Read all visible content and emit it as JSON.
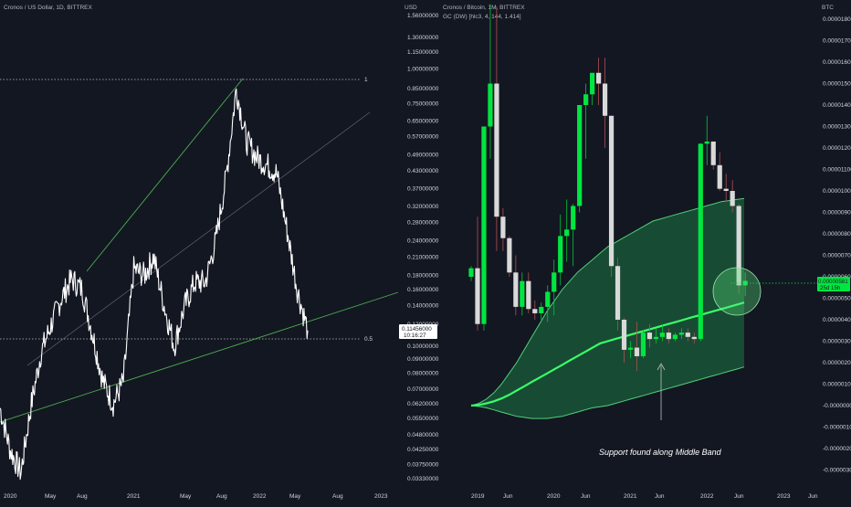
{
  "colors": {
    "background": "#131722",
    "price_line": "#ffffff",
    "trendline": "#4caf50",
    "candle_up": "#00e640",
    "candle_down": "#e0e0e0",
    "band_fill": "#1b5e3a",
    "middle_band": "#39ff6a",
    "highlight": "#58e078"
  },
  "chart_data": [
    {
      "type": "line",
      "title": "Cronos / US Dollar, 1D, BITTREX",
      "currency": "USD",
      "y_scale": "log",
      "y_ticks": [
        "1.56000000",
        "1.30000000",
        "1.15000000",
        "1.00000000",
        "0.85000000",
        "0.75000000",
        "0.65000000",
        "0.57000000",
        "0.49000000",
        "0.43000000",
        "0.37000000",
        "0.32000000",
        "0.28000000",
        "0.24000000",
        "0.21000000",
        "0.18000000",
        "0.16000000",
        "0.14000000",
        "0.12000000",
        "0.10000000",
        "0.09000000",
        "0.08000000",
        "0.07000000",
        "0.06200000",
        "0.05500000",
        "0.04800000",
        "0.04250000",
        "0.03750000",
        "0.03330000"
      ],
      "x_ticks": [
        "2020",
        "May",
        "Aug",
        "2021",
        "May",
        "Aug",
        "2022",
        "May",
        "Aug",
        "2023"
      ],
      "last_price": "0.11456000",
      "countdown": "10:16:27",
      "fib_levels": [
        {
          "label": "1",
          "value": 0.9
        },
        {
          "label": "0.5",
          "value": 0.107
        }
      ],
      "series": [
        {
          "x": [
            "2019-12",
            "2020-01",
            "2020-02",
            "2020-03",
            "2020-04",
            "2020-05",
            "2020-06",
            "2020-07",
            "2020-08",
            "2020-09",
            "2020-10",
            "2020-11",
            "2020-12",
            "2021-01",
            "2021-02",
            "2021-03",
            "2021-04",
            "2021-05",
            "2021-06",
            "2021-07",
            "2021-08",
            "2021-09",
            "2021-10",
            "2021-11",
            "2021-12",
            "2022-01",
            "2022-02",
            "2022-03",
            "2022-04",
            "2022-05",
            "2022-06"
          ],
          "y": [
            0.06,
            0.042,
            0.035,
            0.06,
            0.095,
            0.12,
            0.15,
            0.175,
            0.16,
            0.11,
            0.075,
            0.062,
            0.075,
            0.19,
            0.18,
            0.21,
            0.14,
            0.1,
            0.14,
            0.17,
            0.17,
            0.24,
            0.4,
            0.85,
            0.55,
            0.48,
            0.45,
            0.42,
            0.26,
            0.16,
            0.114
          ]
        }
      ]
    },
    {
      "type": "candlestick",
      "title": "Cronos / Bitcoin, 1M, BITTREX",
      "indicator": "GC (DW) [hlc3, 4, 144, 1.414]",
      "currency": "BTC",
      "y_ticks": [
        "0.00001800",
        "0.00001700",
        "0.00001600",
        "0.00001500",
        "0.00001400",
        "0.00001300",
        "0.00001200",
        "0.00001100",
        "0.00001000",
        "0.00000900",
        "0.00000800",
        "0.00000700",
        "0.00000600",
        "0.00000500",
        "0.00000400",
        "0.00000300",
        "0.00000200",
        "0.00000100",
        "-0.00000000",
        "-0.00000100",
        "-0.00000200",
        "-0.00000300"
      ],
      "x_ticks": [
        "2019",
        "Jun",
        "2020",
        "Jun",
        "2021",
        "Jun",
        "2022",
        "Jun",
        "2023",
        "Jun"
      ],
      "last_price": "0.00000581",
      "countdown": "25d 15h",
      "annotation": "Support found along Middle Band",
      "candles_ohlc": [
        [
          6e-06,
          6.5e-06,
          5.8e-06,
          6.4e-06
        ],
        [
          6.4e-06,
          8.8e-06,
          3.5e-06,
          3.8e-06
        ],
        [
          3.8e-06,
          1.3e-05,
          3.5e-06,
          1.3e-05
        ],
        [
          1.3e-05,
          1.87e-05,
          1.15e-05,
          1.5e-05
        ],
        [
          1.5e-05,
          1.86e-05,
          7.2e-06,
          8.8e-06
        ],
        [
          8.8e-06,
          9.2e-06,
          7.2e-06,
          7.8e-06
        ],
        [
          7.8e-06,
          7.9e-06,
          6e-06,
          6.2e-06
        ],
        [
          6.2e-06,
          7e-06,
          4.2e-06,
          4.6e-06
        ],
        [
          4.6e-06,
          6.2e-06,
          4.2e-06,
          5.8e-06
        ],
        [
          5.8e-06,
          6.2e-06,
          4.3e-06,
          4.5e-06
        ],
        [
          4.5e-06,
          4.9e-06,
          4e-06,
          4.3e-06
        ],
        [
          4.3e-06,
          4.8e-06,
          4e-06,
          4.6e-06
        ],
        [
          4.6e-06,
          5.6e-06,
          3.9e-06,
          5.3e-06
        ],
        [
          5.3e-06,
          6.8e-06,
          4.2e-06,
          6.2e-06
        ],
        [
          6.2e-06,
          8.9e-06,
          5.6e-06,
          7.9e-06
        ],
        [
          7.9e-06,
          9.6e-06,
          6.7e-06,
          8.2e-06
        ],
        [
          8.2e-06,
          9.4e-06,
          6.5e-06,
          9.3e-06
        ],
        [
          9.3e-06,
          1.4e-05,
          9e-06,
          1.4e-05
        ],
        [
          1.4e-05,
          1.5e-05,
          1.15e-05,
          1.45e-05
        ],
        [
          1.45e-05,
          1.55e-05,
          1.4e-05,
          1.55e-05
        ],
        [
          1.55e-05,
          1.62e-05,
          1.4e-05,
          1.5e-05
        ],
        [
          1.5e-05,
          1.62e-05,
          1.2e-05,
          1.35e-05
        ],
        [
          1.35e-05,
          1.35e-05,
          6e-06,
          6.5e-06
        ],
        [
          6.5e-06,
          6.9e-06,
          3.5e-06,
          4e-06
        ],
        [
          4e-06,
          4.1e-06,
          2e-06,
          2.6e-06
        ],
        [
          2.6e-06,
          3e-06,
          2.2e-06,
          2.7e-06
        ],
        [
          2.7e-06,
          3.9e-06,
          1.6e-06,
          2.3e-06
        ],
        [
          2.3e-06,
          3.5e-06,
          2.2e-06,
          3.4e-06
        ],
        [
          3.4e-06,
          3.8e-06,
          2.7e-06,
          3.1e-06
        ],
        [
          3.1e-06,
          3.6e-06,
          2.9e-06,
          3.2e-06
        ],
        [
          3.2e-06,
          3.8e-06,
          3e-06,
          3.4e-06
        ],
        [
          3.4e-06,
          3.6e-06,
          2.9e-06,
          3.1e-06
        ],
        [
          3.1e-06,
          3.4e-06,
          3e-06,
          3.3e-06
        ],
        [
          3.3e-06,
          3.6e-06,
          3.1e-06,
          3.4e-06
        ],
        [
          3.4e-06,
          3.6e-06,
          3e-06,
          3.2e-06
        ],
        [
          3.2e-06,
          3.4e-06,
          2.9e-06,
          3.1e-06
        ],
        [
          3.1e-06,
          1.22e-05,
          3e-06,
          1.22e-05
        ],
        [
          1.22e-05,
          1.35e-05,
          1.12e-05,
          1.23e-05
        ],
        [
          1.23e-05,
          1.23e-05,
          1.1e-05,
          1.12e-05
        ],
        [
          1.12e-05,
          1.18e-05,
          1e-05,
          1.01e-05
        ],
        [
          1.01e-05,
          1.08e-05,
          9.5e-06,
          1e-05
        ],
        [
          1e-05,
          1.05e-05,
          9e-06,
          9.3e-06
        ],
        [
          9.3e-06,
          9.4e-06,
          5.2e-06,
          5.6e-06
        ],
        [
          5.6e-06,
          6.2e-06,
          5.1e-06,
          5.81e-06
        ]
      ],
      "middle_band": [
        0.0,
        3e-08,
        1e-07,
        2e-07,
        3.3e-07,
        5e-07,
        7e-07,
        9e-07,
        1.1e-06,
        1.3e-06,
        1.5e-06,
        1.7e-06,
        1.9e-06,
        2.1e-06,
        2.3e-06,
        2.5e-06,
        2.7e-06,
        2.9e-06,
        3e-06,
        3.1e-06,
        3.2e-06,
        3.3e-06,
        3.4e-06,
        3.5e-06,
        3.6e-06,
        3.7e-06,
        3.8e-06,
        3.9e-06,
        4e-06,
        4.1e-06,
        4.2e-06,
        4.3e-06,
        4.4e-06,
        4.5e-06,
        4.6e-06,
        4.7e-06,
        4.8e-06
      ],
      "upper_band": [
        0.0,
        1e-07,
        3e-07,
        6e-07,
        1e-06,
        1.5e-06,
        2e-06,
        2.6e-06,
        3.2e-06,
        3.8e-06,
        4.4e-06,
        4.9e-06,
        5.4e-06,
        5.8e-06,
        6.2e-06,
        6.5e-06,
        6.8e-06,
        7.1e-06,
        7.4e-06,
        7.6e-06,
        7.8e-06,
        8e-06,
        8.2e-06,
        8.4e-06,
        8.6e-06,
        8.7e-06,
        8.8e-06,
        8.9e-06,
        9e-06,
        9.1e-06,
        9.2e-06,
        9.3e-06,
        9.4e-06,
        9.5e-06,
        9.55e-06,
        9.6e-06,
        9.65e-06
      ],
      "lower_band": [
        0.0,
        -4e-08,
        -1e-07,
        -2e-07,
        -3e-07,
        -4e-07,
        -5e-07,
        -5.5e-07,
        -6e-07,
        -6e-07,
        -6e-07,
        -5.5e-07,
        -5e-07,
        -4e-07,
        -3e-07,
        -2e-07,
        -1e-07,
        -5e-08,
        0.0,
        1e-07,
        2e-07,
        3e-07,
        4e-07,
        5e-07,
        6e-07,
        7e-07,
        8e-07,
        9e-07,
        1e-06,
        1.1e-06,
        1.2e-06,
        1.3e-06,
        1.4e-06,
        1.5e-06,
        1.6e-06,
        1.7e-06,
        1.8e-06
      ]
    }
  ]
}
